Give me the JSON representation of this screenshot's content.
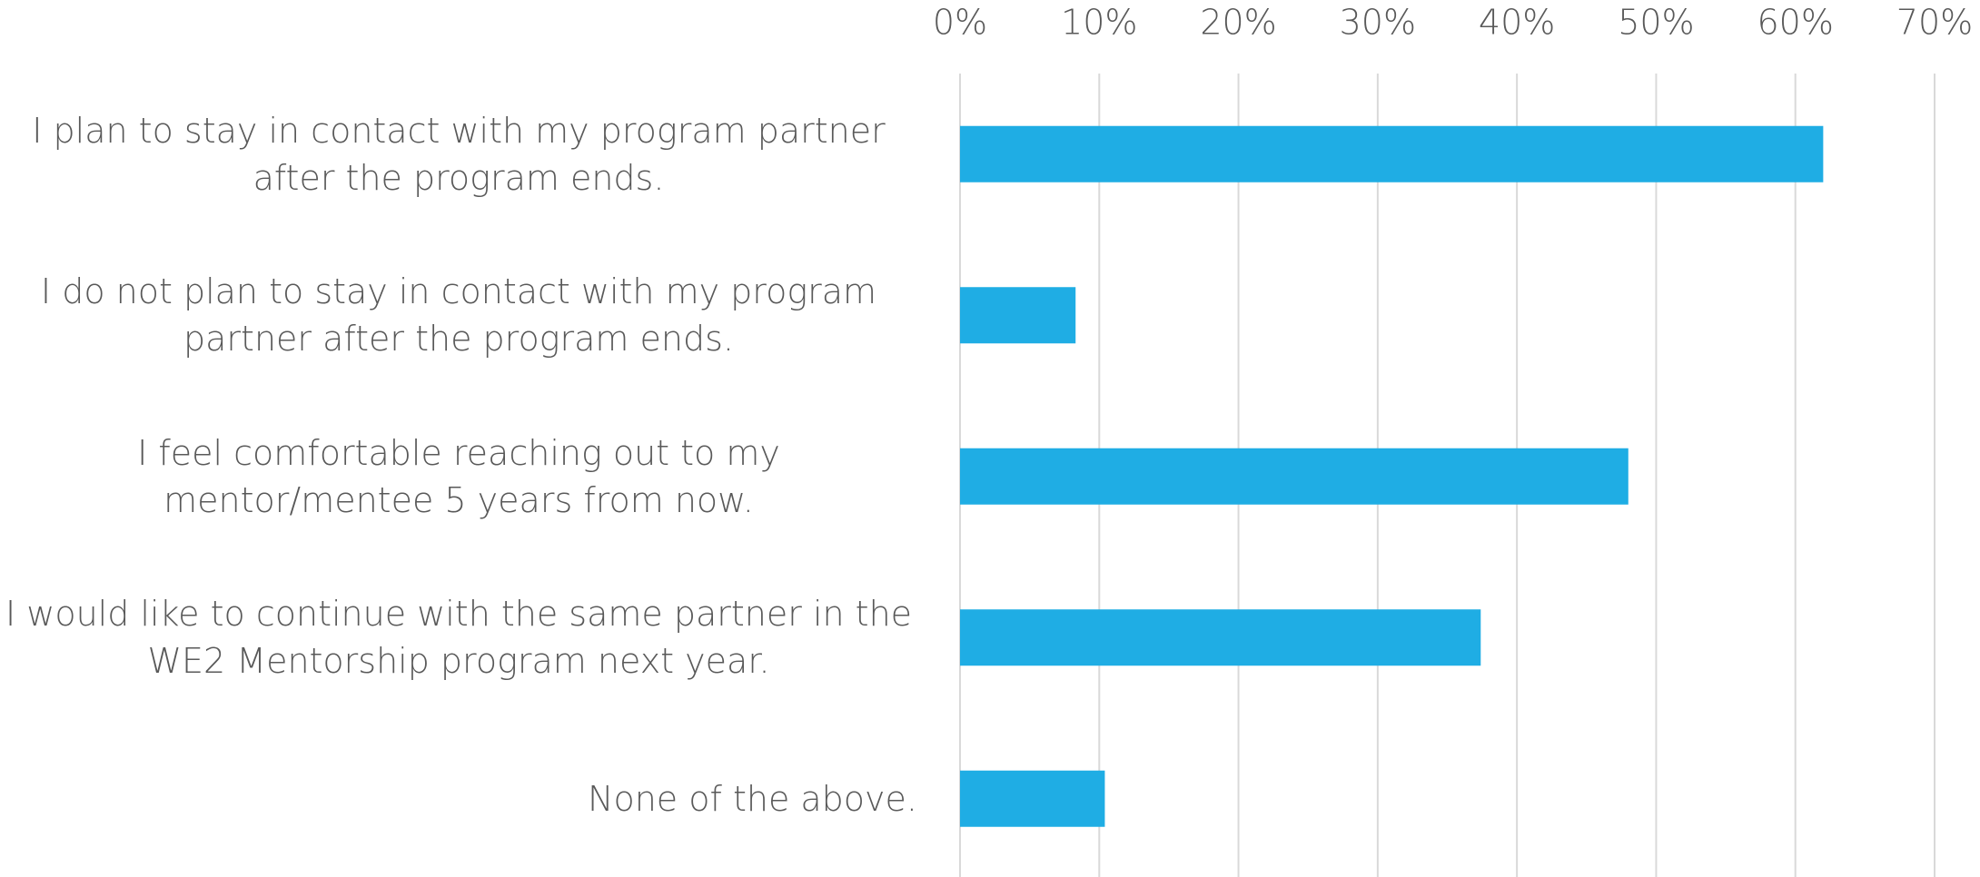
{
  "chart_data": {
    "type": "bar",
    "orientation": "horizontal",
    "categories": [
      "I plan to stay in contact with my program partner after the program ends.",
      "I do not plan to stay in contact with my program partner after the program ends.",
      "I feel comfortable reaching out to my mentor/mentee 5 years from now.",
      "I would like to continue with the same partner in the WE2 Mentorship program next year.",
      "None of the above."
    ],
    "values": [
      62,
      8.3,
      48,
      37.4,
      10.4
    ],
    "color": "#1fade4",
    "xlim": [
      0,
      70
    ],
    "xticks": [
      {
        "value": 0,
        "label": "0%"
      },
      {
        "value": 10,
        "label": "10%"
      },
      {
        "value": 20,
        "label": "20%"
      },
      {
        "value": 30,
        "label": "30%"
      },
      {
        "value": 40,
        "label": "40%"
      },
      {
        "value": 50,
        "label": "50%"
      },
      {
        "value": 60,
        "label": "60%"
      },
      {
        "value": 70,
        "label": "70%"
      }
    ],
    "grid": true
  }
}
